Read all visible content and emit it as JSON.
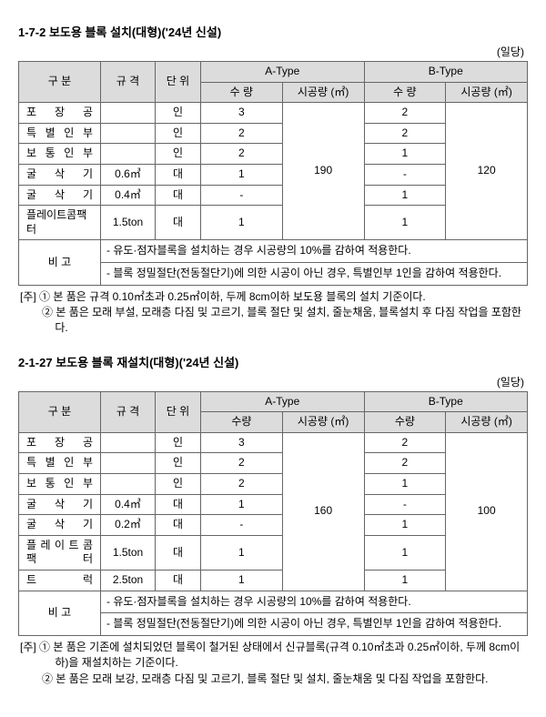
{
  "section1": {
    "title": "1-7-2 보도용 블록 설치(대형)('24년 신설)",
    "unit_label": "(일당)",
    "headers": {
      "gubun": "구 분",
      "gyugyeok": "규 격",
      "danwi": "단 위",
      "a_type": "A-Type",
      "b_type": "B-Type",
      "suryang": "수 량",
      "sigong": "시공량 (㎡)"
    },
    "rows": [
      {
        "name": "포 장 공",
        "spec": "",
        "unit": "인",
        "a_qty": "3",
        "b_qty": "2"
      },
      {
        "name": "특 별 인 부",
        "spec": "",
        "unit": "인",
        "a_qty": "2",
        "b_qty": "2"
      },
      {
        "name": "보 통 인 부",
        "spec": "",
        "unit": "인",
        "a_qty": "2",
        "b_qty": "1"
      },
      {
        "name": "굴 삭 기",
        "spec": "0.6㎥",
        "unit": "대",
        "a_qty": "1",
        "b_qty": "-"
      },
      {
        "name": "굴 삭 기",
        "spec": "0.4㎥",
        "unit": "대",
        "a_qty": "-",
        "b_qty": "1"
      },
      {
        "name": "플레이트콤팩터",
        "spec": "1.5ton",
        "unit": "대",
        "a_qty": "1",
        "b_qty": "1"
      }
    ],
    "a_sigong": "190",
    "b_sigong": "120",
    "bigo_label": "비   고",
    "bigo_lines": [
      "- 유도·점자블록을 설치하는 경우 시공량의 10%를 감하여 적용한다.",
      "- 블록 정밀절단(전동절단기)에 의한 시공이 아닌 경우, 특별인부 1인을 감하여 적용한다."
    ],
    "footnotes": [
      "[주] ① 본 품은 규격 0.10㎡초과 0.25㎡이하, 두께 8cm이하 보도용 블록의 설치 기준이다.",
      "② 본 품은 모래 부설, 모래층 다짐 및 고르기, 블록 절단 및 설치, 줄눈채움, 블록설치 후 다짐 작업을 포함한다."
    ]
  },
  "section2": {
    "title": "2-1-27 보도용 블록 재설치(대형)('24년 신설)",
    "unit_label": "(일당)",
    "headers": {
      "gubun": "구 분",
      "gyugyeok": "규 격",
      "danwi": "단 위",
      "a_type": "A-Type",
      "b_type": "B-Type",
      "suryang": "수량",
      "sigong": "시공량 (㎡)"
    },
    "rows": [
      {
        "name": "포 장 공",
        "spec": "",
        "unit": "인",
        "a_qty": "3",
        "b_qty": "2"
      },
      {
        "name": "특 별 인 부",
        "spec": "",
        "unit": "인",
        "a_qty": "2",
        "b_qty": "2"
      },
      {
        "name": "보 통 인 부",
        "spec": "",
        "unit": "인",
        "a_qty": "2",
        "b_qty": "1"
      },
      {
        "name": "굴 삭 기",
        "spec": "0.4㎥",
        "unit": "대",
        "a_qty": "1",
        "b_qty": "-"
      },
      {
        "name": "굴 삭 기",
        "spec": "0.2㎥",
        "unit": "대",
        "a_qty": "-",
        "b_qty": "1"
      },
      {
        "name": "플 레 이 트 콤 팩 터",
        "spec": "1.5ton",
        "unit": "대",
        "a_qty": "1",
        "b_qty": "1"
      },
      {
        "name": "트 럭",
        "spec": "2.5ton",
        "unit": "대",
        "a_qty": "1",
        "b_qty": "1"
      }
    ],
    "a_sigong": "160",
    "b_sigong": "100",
    "bigo_label": "비   고",
    "bigo_lines": [
      "- 유도·점자블록을 설치하는 경우 시공량의 10%를 감하여 적용한다.",
      "- 블록 정밀절단(전동절단기)에 의한 시공이 아닌 경우, 특별인부 1인을 감하여 적용한다."
    ],
    "footnotes": [
      "[주] ① 본 품은 기존에 설치되었던 블록이 철거된 상태에서 신규블록(규격 0.10㎡초과 0.25㎡이하, 두께 8cm이하)을 재설치하는 기준이다.",
      "② 본 품은 모래 보강, 모래층 다짐 및 고르기, 블록 절단 및 설치, 줄눈채움 및 다짐 작업을 포함한다."
    ]
  }
}
